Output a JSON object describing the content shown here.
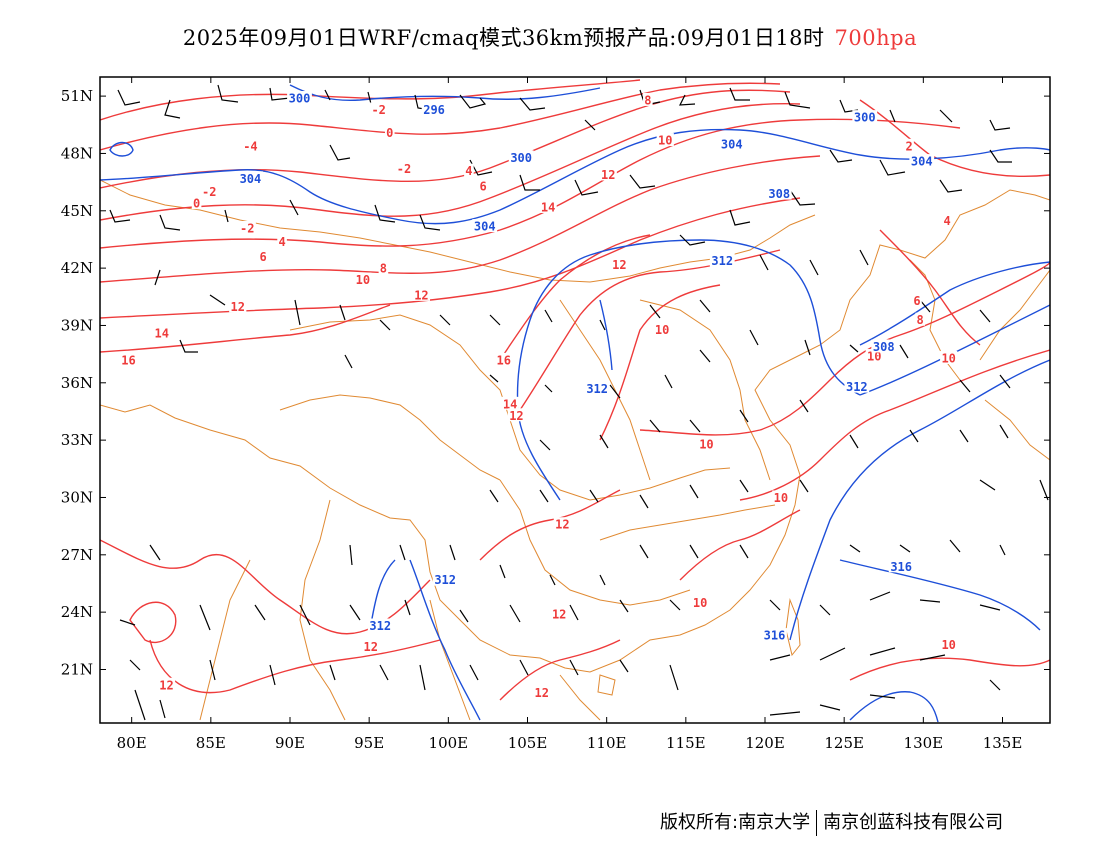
{
  "title": {
    "main": "2025年09月01日WRF/cmaq模式36km预报产品:09月01日18时",
    "level": "700hpa"
  },
  "colors": {
    "temperature": "#ee3b3b",
    "geopotential": "#1e4fd8",
    "border": "#e08a33",
    "wind": "#000000"
  },
  "axes": {
    "lon_ticks": [
      "80E",
      "85E",
      "90E",
      "95E",
      "100E",
      "105E",
      "110E",
      "115E",
      "120E",
      "125E",
      "130E",
      "135E"
    ],
    "lon_values": [
      80,
      85,
      90,
      95,
      100,
      105,
      110,
      115,
      120,
      125,
      130,
      135
    ],
    "lat_ticks": [
      "51N",
      "48N",
      "45N",
      "42N",
      "39N",
      "36N",
      "33N",
      "30N",
      "27N",
      "24N",
      "21N"
    ],
    "lat_values": [
      51,
      48,
      45,
      42,
      39,
      36,
      33,
      30,
      27,
      24,
      21
    ],
    "lon_range": [
      78,
      138
    ],
    "lat_range": [
      18.2,
      52
    ]
  },
  "temperature_labels": [
    {
      "text": "-2",
      "lon": 95.6,
      "lat": 50.3
    },
    {
      "text": "-4",
      "lon": 87.5,
      "lat": 48.4
    },
    {
      "text": "0",
      "lon": 96.3,
      "lat": 49.1
    },
    {
      "text": "-2",
      "lon": 97.2,
      "lat": 47.2
    },
    {
      "text": "4",
      "lon": 101.3,
      "lat": 47.1
    },
    {
      "text": "6",
      "lon": 102.2,
      "lat": 46.3
    },
    {
      "text": "-2",
      "lon": 84.9,
      "lat": 46.0
    },
    {
      "text": "0",
      "lon": 84.1,
      "lat": 45.4
    },
    {
      "text": "-2",
      "lon": 87.3,
      "lat": 44.1
    },
    {
      "text": "4",
      "lon": 89.5,
      "lat": 43.4
    },
    {
      "text": "6",
      "lon": 88.3,
      "lat": 42.6
    },
    {
      "text": "8",
      "lon": 95.9,
      "lat": 42.0
    },
    {
      "text": "10",
      "lon": 94.6,
      "lat": 41.4
    },
    {
      "text": "12",
      "lon": 98.3,
      "lat": 40.6
    },
    {
      "text": "12",
      "lon": 86.7,
      "lat": 40.0
    },
    {
      "text": "14",
      "lon": 81.9,
      "lat": 38.6
    },
    {
      "text": "16",
      "lon": 79.8,
      "lat": 37.2
    },
    {
      "text": "8",
      "lon": 112.6,
      "lat": 50.8
    },
    {
      "text": "10",
      "lon": 113.7,
      "lat": 48.7
    },
    {
      "text": "12",
      "lon": 110.1,
      "lat": 46.9
    },
    {
      "text": "14",
      "lon": 106.3,
      "lat": 45.2
    },
    {
      "text": "12",
      "lon": 110.8,
      "lat": 42.2
    },
    {
      "text": "10",
      "lon": 113.5,
      "lat": 38.8
    },
    {
      "text": "16",
      "lon": 103.5,
      "lat": 37.2
    },
    {
      "text": "14",
      "lon": 103.9,
      "lat": 34.9
    },
    {
      "text": "12",
      "lon": 104.3,
      "lat": 34.3
    },
    {
      "text": "10",
      "lon": 116.3,
      "lat": 32.8
    },
    {
      "text": "10",
      "lon": 121.0,
      "lat": 30.0
    },
    {
      "text": "12",
      "lon": 107.2,
      "lat": 28.6
    },
    {
      "text": "12",
      "lon": 107.0,
      "lat": 23.9
    },
    {
      "text": "10",
      "lon": 115.9,
      "lat": 24.5
    },
    {
      "text": "12",
      "lon": 95.1,
      "lat": 22.2
    },
    {
      "text": "12",
      "lon": 82.2,
      "lat": 20.2
    },
    {
      "text": "12",
      "lon": 105.9,
      "lat": 19.8
    },
    {
      "text": "2",
      "lon": 129.1,
      "lat": 48.4
    },
    {
      "text": "4",
      "lon": 131.5,
      "lat": 44.5
    },
    {
      "text": "6",
      "lon": 129.6,
      "lat": 40.3
    },
    {
      "text": "8",
      "lon": 129.8,
      "lat": 39.3
    },
    {
      "text": "10",
      "lon": 126.9,
      "lat": 37.4
    },
    {
      "text": "10",
      "lon": 131.6,
      "lat": 37.3
    },
    {
      "text": "10",
      "lon": 131.6,
      "lat": 22.3
    }
  ],
  "height_labels": [
    {
      "text": "300",
      "lon": 90.6,
      "lat": 50.9
    },
    {
      "text": "296",
      "lon": 99.1,
      "lat": 50.3
    },
    {
      "text": "300",
      "lon": 104.6,
      "lat": 47.8
    },
    {
      "text": "304",
      "lon": 87.5,
      "lat": 46.7
    },
    {
      "text": "304",
      "lon": 102.3,
      "lat": 44.2
    },
    {
      "text": "304",
      "lon": 117.9,
      "lat": 48.5
    },
    {
      "text": "300",
      "lon": 126.3,
      "lat": 49.9
    },
    {
      "text": "304",
      "lon": 129.9,
      "lat": 47.6
    },
    {
      "text": "308",
      "lon": 120.9,
      "lat": 45.9
    },
    {
      "text": "312",
      "lon": 117.3,
      "lat": 42.4
    },
    {
      "text": "312",
      "lon": 109.4,
      "lat": 35.7
    },
    {
      "text": "308",
      "lon": 127.5,
      "lat": 37.9
    },
    {
      "text": "312",
      "lon": 125.8,
      "lat": 35.8
    },
    {
      "text": "312",
      "lon": 99.8,
      "lat": 25.7
    },
    {
      "text": "312",
      "lon": 95.7,
      "lat": 23.3
    },
    {
      "text": "316",
      "lon": 128.6,
      "lat": 26.4
    },
    {
      "text": "316",
      "lon": 120.6,
      "lat": 22.8
    }
  ],
  "footer": {
    "left": "版权所有:南京大学",
    "right": "南京创蓝科技有限公司"
  }
}
